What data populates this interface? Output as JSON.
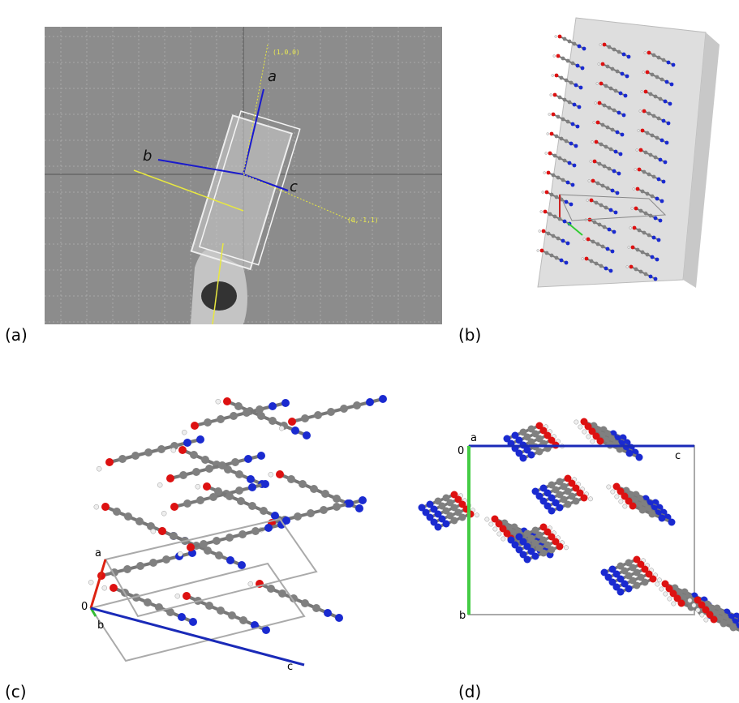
{
  "panels": [
    {
      "label": "(a)",
      "annotations": [
        "a",
        "b",
        "c",
        "(1,0,0)",
        "(0,-1,1)"
      ]
    },
    {
      "label": "(b)"
    },
    {
      "label": "(c)",
      "axis_labels": [
        "a",
        "0",
        "b",
        "c"
      ]
    },
    {
      "label": "(d)",
      "axis_labels": [
        "a",
        "0",
        "c",
        "b"
      ]
    }
  ]
}
